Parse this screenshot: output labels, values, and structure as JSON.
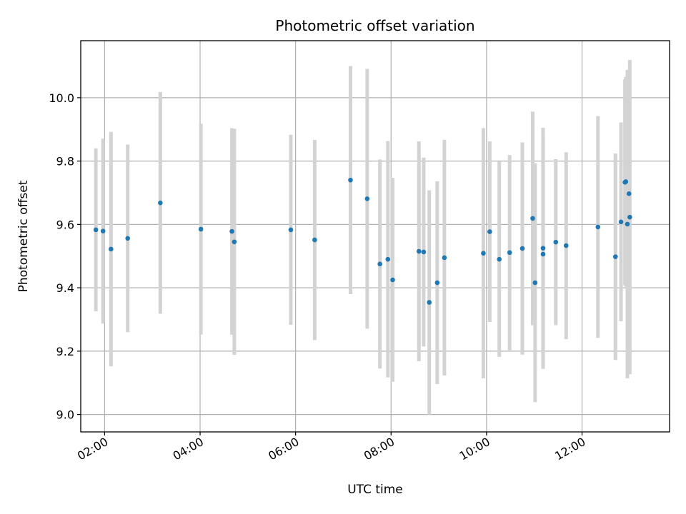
{
  "chart_data": {
    "type": "scatter",
    "title": "Photometric offset variation",
    "xlabel": "UTC time",
    "ylabel": "Photometric offset",
    "x_ticks": [
      "02:00",
      "04:00",
      "06:00",
      "08:00",
      "10:00",
      "12:00"
    ],
    "y_ticks": [
      "9.0",
      "9.2",
      "9.4",
      "9.6",
      "9.8",
      "10.0"
    ],
    "xlim": [
      "01:30",
      "13:50"
    ],
    "ylim": [
      8.945,
      10.18
    ],
    "grid": true,
    "colors": {
      "marker": "#1f77b4",
      "errorbar": "#d3d3d3",
      "grid": "#b0b0b0"
    },
    "series": [
      {
        "points": [
          {
            "x": "01:49",
            "y": 9.583,
            "yerr": 0.257
          },
          {
            "x": "01:58",
            "y": 9.579,
            "yerr": 0.292
          },
          {
            "x": "02:08",
            "y": 9.522,
            "yerr": 0.37
          },
          {
            "x": "02:29",
            "y": 9.556,
            "yerr": 0.296
          },
          {
            "x": "03:10",
            "y": 9.668,
            "yerr": 0.35
          },
          {
            "x": "04:01",
            "y": 9.585,
            "yerr": 0.333
          },
          {
            "x": "04:40",
            "y": 9.578,
            "yerr": 0.326
          },
          {
            "x": "04:43",
            "y": 9.545,
            "yerr": 0.357
          },
          {
            "x": "05:54",
            "y": 9.583,
            "yerr": 0.3
          },
          {
            "x": "06:24",
            "y": 9.551,
            "yerr": 0.316
          },
          {
            "x": "07:09",
            "y": 9.74,
            "yerr": 0.36
          },
          {
            "x": "07:30",
            "y": 9.681,
            "yerr": 0.41
          },
          {
            "x": "07:46",
            "y": 9.475,
            "yerr": 0.33
          },
          {
            "x": "07:56",
            "y": 9.49,
            "yerr": 0.373
          },
          {
            "x": "08:02",
            "y": 9.425,
            "yerr": 0.322
          },
          {
            "x": "08:35",
            "y": 9.515,
            "yerr": 0.347
          },
          {
            "x": "08:41",
            "y": 9.513,
            "yerr": 0.298
          },
          {
            "x": "08:48",
            "y": 9.354,
            "yerr": 0.354
          },
          {
            "x": "08:58",
            "y": 9.416,
            "yerr": 0.32
          },
          {
            "x": "09:07",
            "y": 9.495,
            "yerr": 0.372
          },
          {
            "x": "09:56",
            "y": 9.509,
            "yerr": 0.395
          },
          {
            "x": "10:04",
            "y": 9.577,
            "yerr": 0.285
          },
          {
            "x": "10:16",
            "y": 9.49,
            "yerr": 0.308
          },
          {
            "x": "10:29",
            "y": 9.511,
            "yerr": 0.308
          },
          {
            "x": "10:45",
            "y": 9.524,
            "yerr": 0.335
          },
          {
            "x": "10:58",
            "y": 9.619,
            "yerr": 0.337
          },
          {
            "x": "11:01",
            "y": 9.416,
            "yerr": 0.377
          },
          {
            "x": "11:11",
            "y": 9.525,
            "yerr": 0.38
          },
          {
            "x": "11:11",
            "y": 9.506,
            "yerr": 0.362
          },
          {
            "x": "11:27",
            "y": 9.544,
            "yerr": 0.262
          },
          {
            "x": "11:40",
            "y": 9.533,
            "yerr": 0.295
          },
          {
            "x": "12:20",
            "y": 9.592,
            "yerr": 0.35
          },
          {
            "x": "12:42",
            "y": 9.498,
            "yerr": 0.326
          },
          {
            "x": "12:49",
            "y": 9.608,
            "yerr": 0.314
          },
          {
            "x": "12:54",
            "y": 9.733,
            "yerr": 0.325
          },
          {
            "x": "12:55",
            "y": 9.735,
            "yerr": 0.331
          },
          {
            "x": "12:57",
            "y": 9.601,
            "yerr": 0.487
          },
          {
            "x": "12:59",
            "y": 9.697,
            "yerr": 0.372
          },
          {
            "x": "13:00",
            "y": 9.623,
            "yerr": 0.496
          }
        ]
      }
    ]
  }
}
